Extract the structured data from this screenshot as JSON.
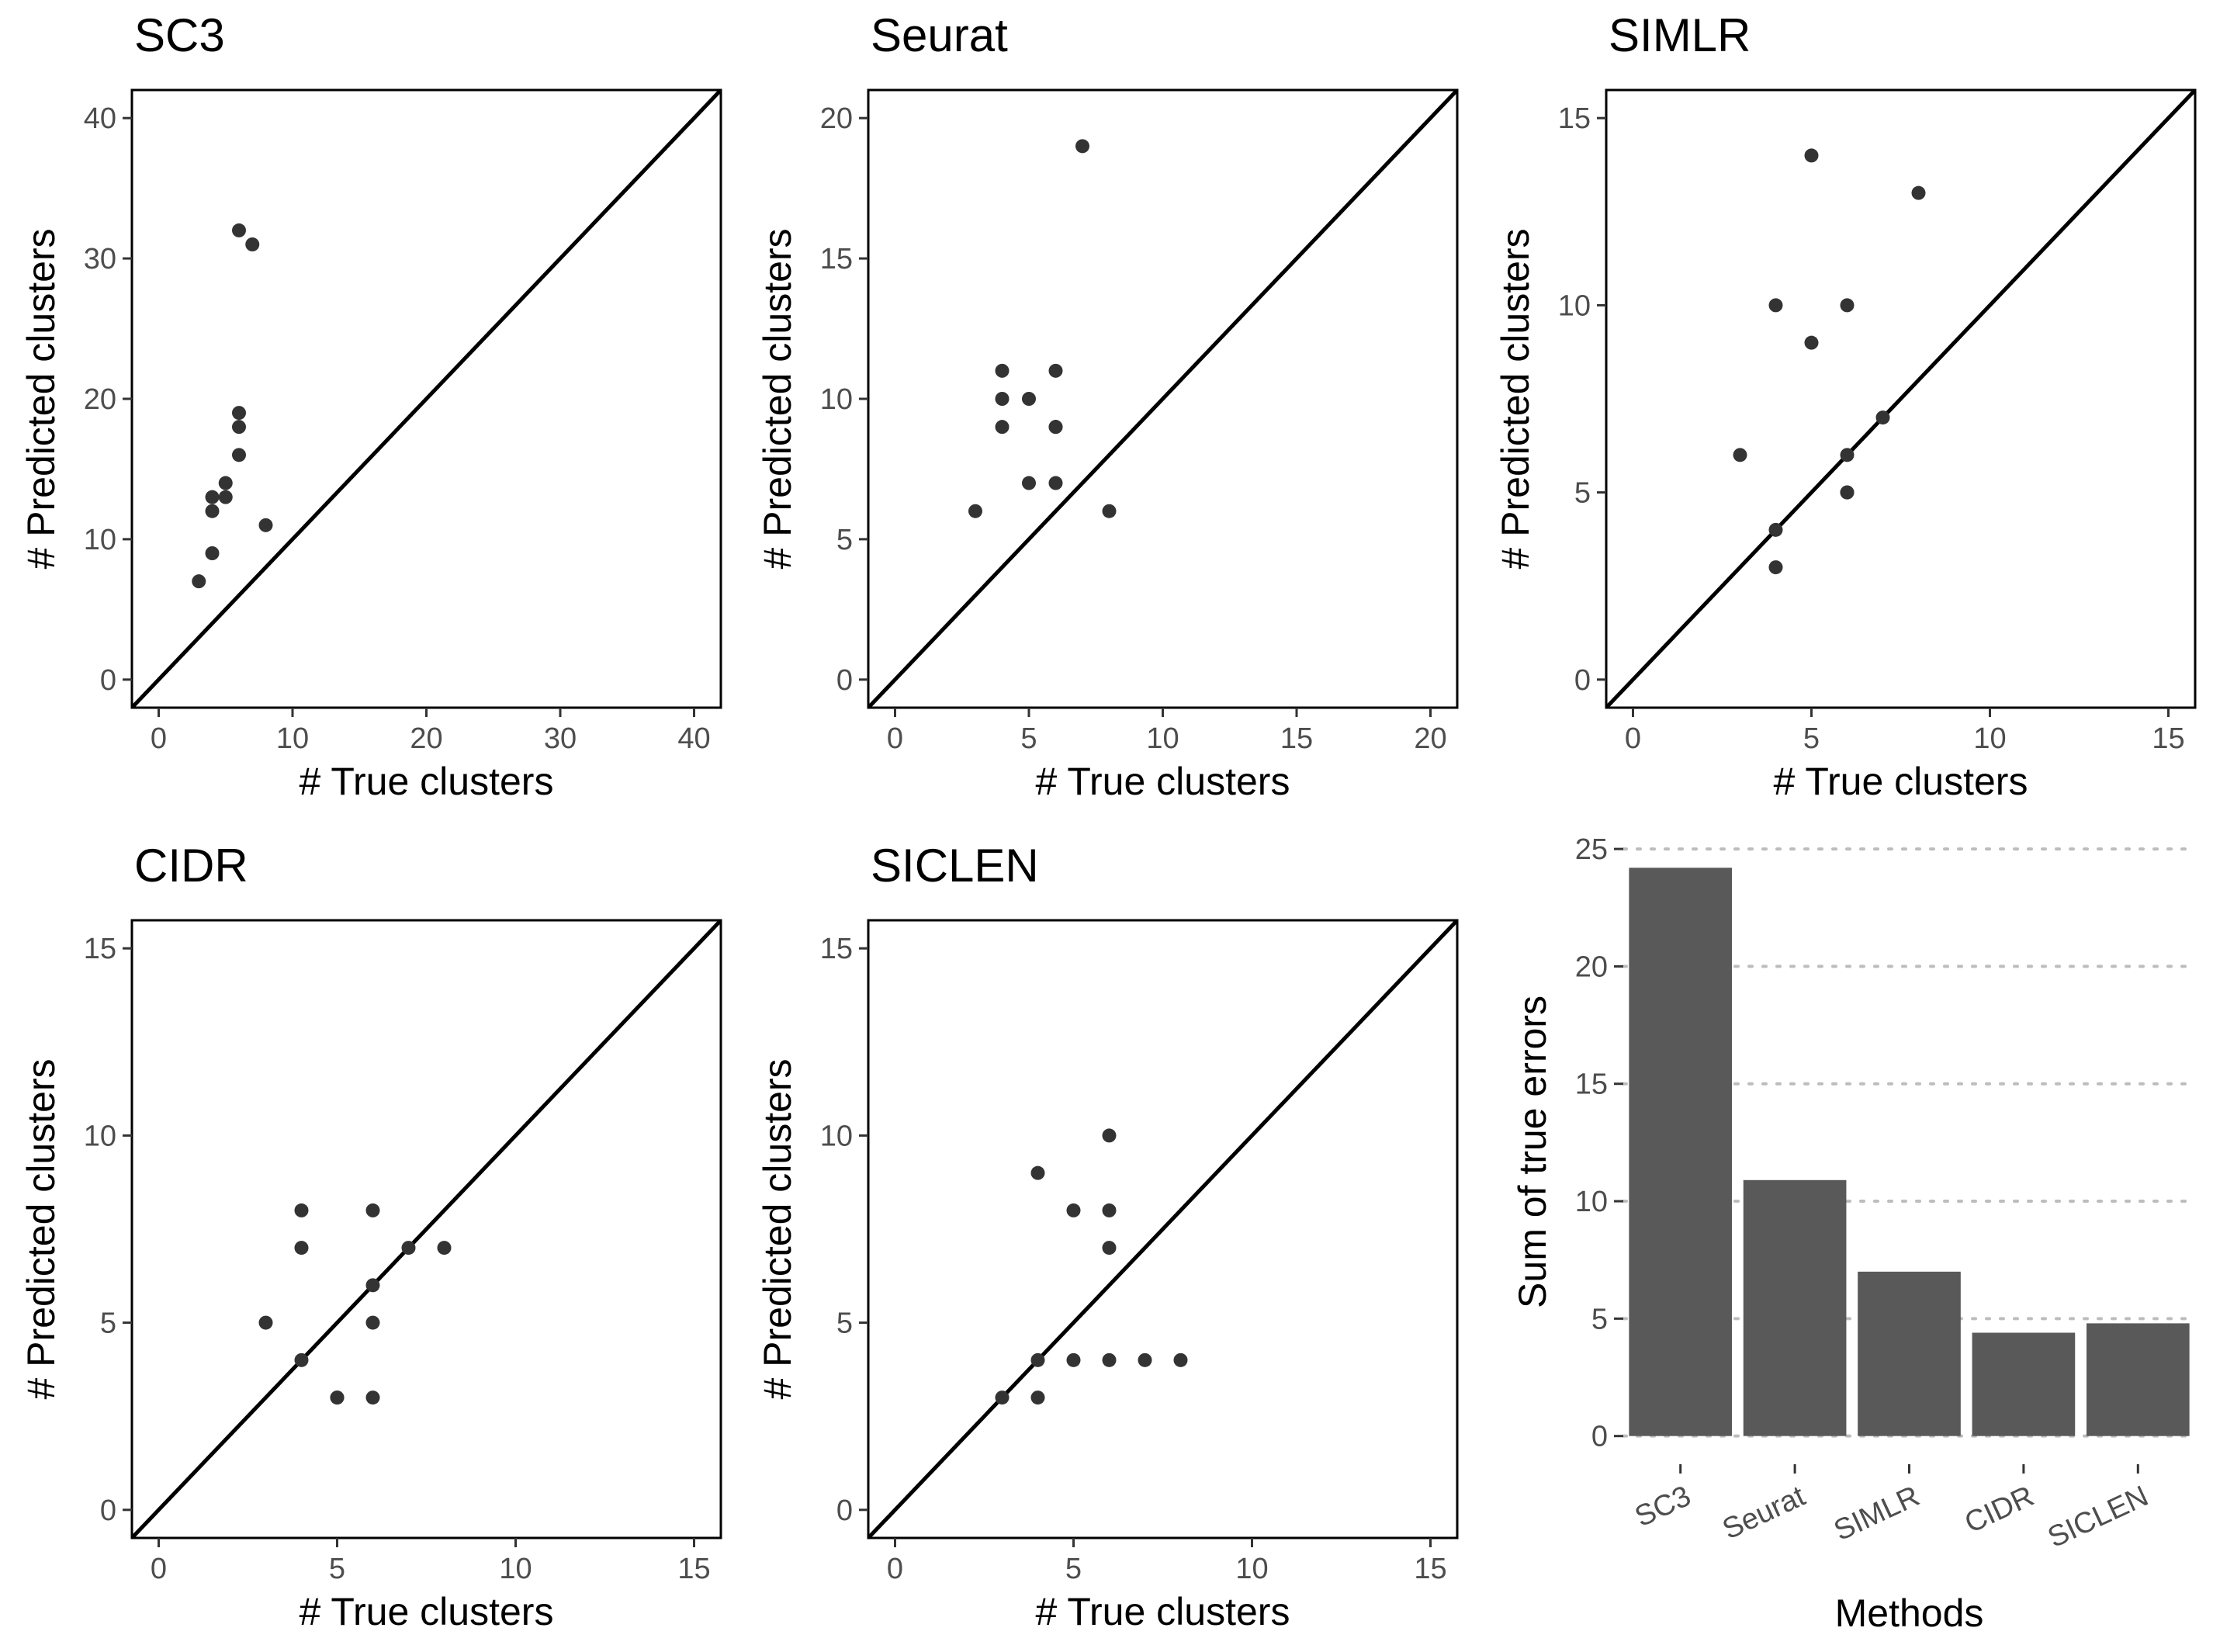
{
  "chart_data": [
    {
      "type": "scatter",
      "title": "SC3",
      "xlabel": "# True clusters",
      "ylabel": "# Predicted clusters",
      "xlim": [
        -2,
        42
      ],
      "ylim": [
        -2,
        42
      ],
      "x_ticks": [
        0,
        10,
        20,
        30,
        40
      ],
      "y_ticks": [
        0,
        10,
        20,
        30,
        40
      ],
      "reference_line": "y = x",
      "points": [
        [
          3,
          7
        ],
        [
          4,
          9
        ],
        [
          4,
          12
        ],
        [
          4,
          13
        ],
        [
          5,
          13
        ],
        [
          5,
          14
        ],
        [
          6,
          16
        ],
        [
          6,
          18
        ],
        [
          6,
          19
        ],
        [
          8,
          11
        ],
        [
          6,
          32
        ],
        [
          7,
          31
        ]
      ]
    },
    {
      "type": "scatter",
      "title": "Seurat",
      "xlabel": "# True clusters",
      "ylabel": "# Predicted clusters",
      "xlim": [
        -1,
        21
      ],
      "ylim": [
        -1,
        21
      ],
      "x_ticks": [
        0,
        5,
        10,
        15,
        20
      ],
      "y_ticks": [
        0,
        5,
        10,
        15,
        20
      ],
      "reference_line": "y = x",
      "points": [
        [
          3,
          6
        ],
        [
          4,
          9
        ],
        [
          4,
          10
        ],
        [
          4,
          11
        ],
        [
          5,
          7
        ],
        [
          5,
          10
        ],
        [
          6,
          7
        ],
        [
          6,
          9
        ],
        [
          6,
          9
        ],
        [
          6,
          11
        ],
        [
          7,
          19
        ],
        [
          8,
          6
        ]
      ]
    },
    {
      "type": "scatter",
      "title": "SIMLR",
      "xlabel": "# True clusters",
      "ylabel": "# Predicted clusters",
      "xlim": [
        -0.75,
        15.75
      ],
      "ylim": [
        -0.75,
        15.75
      ],
      "x_ticks": [
        0,
        5,
        10,
        15
      ],
      "y_ticks": [
        0,
        5,
        10,
        15
      ],
      "reference_line": "y = x",
      "points": [
        [
          3,
          6
        ],
        [
          4,
          3
        ],
        [
          4,
          4
        ],
        [
          4,
          10
        ],
        [
          5,
          9
        ],
        [
          5,
          14
        ],
        [
          6,
          5
        ],
        [
          6,
          5
        ],
        [
          6,
          6
        ],
        [
          6,
          10
        ],
        [
          7,
          7
        ],
        [
          8,
          13
        ]
      ]
    },
    {
      "type": "scatter",
      "title": "CIDR",
      "xlabel": "# True clusters",
      "ylabel": "# Predicted clusters",
      "xlim": [
        -0.75,
        15.75
      ],
      "ylim": [
        -0.75,
        15.75
      ],
      "x_ticks": [
        0,
        5,
        10,
        15
      ],
      "y_ticks": [
        0,
        5,
        10,
        15
      ],
      "reference_line": "y = x",
      "points": [
        [
          3,
          5
        ],
        [
          4,
          4
        ],
        [
          4,
          7
        ],
        [
          4,
          8
        ],
        [
          5,
          3
        ],
        [
          5,
          3
        ],
        [
          6,
          3
        ],
        [
          6,
          5
        ],
        [
          6,
          6
        ],
        [
          6,
          8
        ],
        [
          7,
          7
        ],
        [
          8,
          7
        ]
      ]
    },
    {
      "type": "scatter",
      "title": "SICLEN",
      "xlabel": "# True clusters",
      "ylabel": "# Predicted clusters",
      "xlim": [
        -0.75,
        15.75
      ],
      "ylim": [
        -0.75,
        15.75
      ],
      "x_ticks": [
        0,
        5,
        10,
        15
      ],
      "y_ticks": [
        0,
        5,
        10,
        15
      ],
      "reference_line": "y = x",
      "points": [
        [
          3,
          3
        ],
        [
          4,
          3
        ],
        [
          4,
          4
        ],
        [
          4,
          9
        ],
        [
          5,
          4
        ],
        [
          5,
          8
        ],
        [
          6,
          4
        ],
        [
          6,
          7
        ],
        [
          6,
          8
        ],
        [
          6,
          10
        ],
        [
          7,
          4
        ],
        [
          8,
          4
        ]
      ]
    },
    {
      "type": "bar",
      "title": "",
      "xlabel": "Methods",
      "ylabel": "Sum of true errors",
      "categories": [
        "SC3",
        "Seurat",
        "SIMLR",
        "CIDR",
        "SICLEN"
      ],
      "values": [
        24.2,
        10.9,
        7.0,
        4.4,
        4.8
      ],
      "ylim": [
        -1.2,
        25.4
      ],
      "y_ticks": [
        0,
        5,
        10,
        15,
        20,
        25
      ],
      "grid": "horizontal dotted"
    }
  ]
}
